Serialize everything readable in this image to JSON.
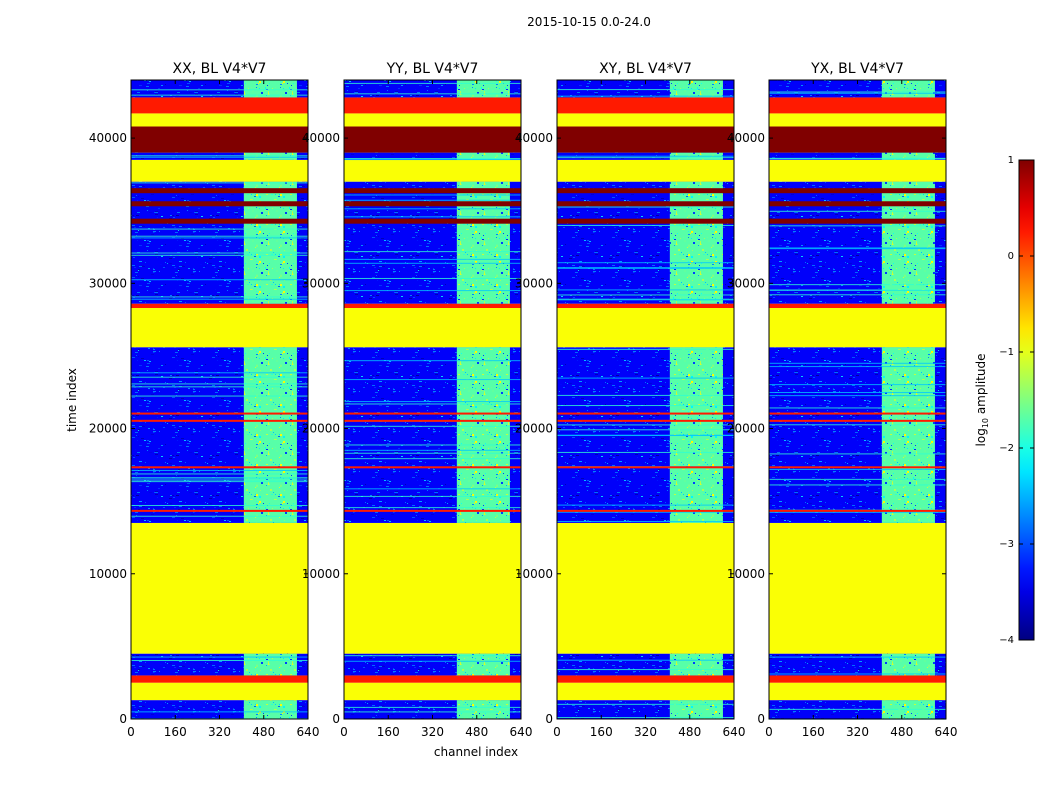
{
  "chart_data": {
    "type": "heatmap",
    "title": "2015-10-15 0.0-24.0",
    "xlabel": "channel index",
    "ylabel": "time index",
    "xlim": [
      0,
      640
    ],
    "ylim": [
      0,
      44000
    ],
    "xticks": [
      0,
      160,
      320,
      480,
      640
    ],
    "yticks": [
      0,
      10000,
      20000,
      30000,
      40000
    ],
    "panels": [
      {
        "title": "XX, BL V4*V7"
      },
      {
        "title": "YY, BL V4*V7"
      },
      {
        "title": "XY, BL V4*V7"
      },
      {
        "title": "YX, BL V4*V7"
      }
    ],
    "bright_channel_range": [
      408,
      600
    ],
    "colorbar": {
      "label": "log$_{10}$ amplitude",
      "label_main": "log",
      "label_sub": "10",
      "label_tail": " amplitude",
      "range": [
        -4,
        1
      ],
      "ticks": [
        "1",
        "0",
        "−1",
        "−2",
        "−3",
        "−4"
      ],
      "colormap": "jet"
    },
    "time_bands": [
      {
        "from": 0,
        "to": 1300,
        "kind": "noise"
      },
      {
        "from": 1300,
        "to": 2500,
        "kind": "flat"
      },
      {
        "from": 2500,
        "to": 3000,
        "kind": "orange"
      },
      {
        "from": 3000,
        "to": 4500,
        "kind": "noise"
      },
      {
        "from": 4500,
        "to": 13500,
        "kind": "flat"
      },
      {
        "from": 13500,
        "to": 25600,
        "kind": "noise"
      },
      {
        "from": 25600,
        "to": 28300,
        "kind": "flat"
      },
      {
        "from": 28300,
        "to": 28600,
        "kind": "orange"
      },
      {
        "from": 28600,
        "to": 37000,
        "kind": "noise"
      },
      {
        "from": 37000,
        "to": 38500,
        "kind": "flat"
      },
      {
        "from": 38500,
        "to": 39000,
        "kind": "noise"
      },
      {
        "from": 39000,
        "to": 40800,
        "kind": "saturated"
      },
      {
        "from": 40800,
        "to": 41700,
        "kind": "flat"
      },
      {
        "from": 41700,
        "to": 42800,
        "kind": "orange"
      },
      {
        "from": 42800,
        "to": 44000,
        "kind": "noise"
      }
    ],
    "saturated_rows": [
      34200,
      35400,
      36300
    ],
    "orange_rows": [
      14300,
      17300,
      20500,
      21000
    ]
  }
}
